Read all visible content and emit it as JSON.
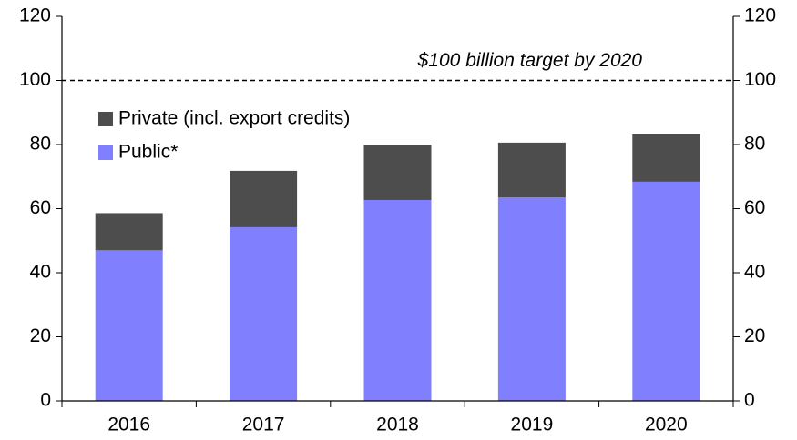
{
  "chart_data": {
    "type": "stacked_bar",
    "categories": [
      "2016",
      "2017",
      "2018",
      "2019",
      "2020"
    ],
    "series": [
      {
        "name": "Public*",
        "color": "#8080ff",
        "values": [
          47,
          54.2,
          62.7,
          63.5,
          68.4
        ]
      },
      {
        "name": "Private (incl. export credits)",
        "color": "#4d4d4d",
        "values": [
          11.6,
          17.6,
          17.3,
          17.1,
          15.0
        ]
      }
    ],
    "ylim": [
      0,
      120
    ],
    "yticks": [
      0,
      20,
      40,
      60,
      80,
      100,
      120
    ],
    "reference_line": {
      "value": 100,
      "label": "$100 billion target by 2020"
    },
    "legend": "upper left",
    "grid": false
  }
}
